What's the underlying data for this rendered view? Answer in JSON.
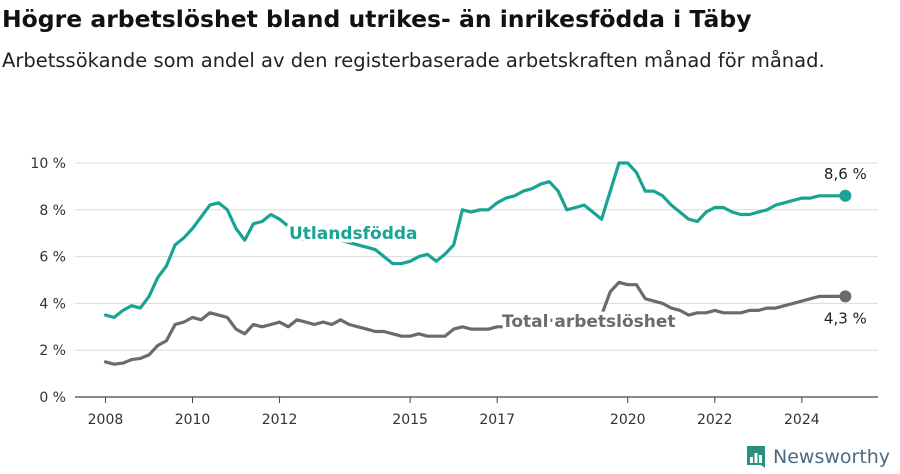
{
  "title": "Högre arbetslöshet bland utrikes- än inrikesfödda i Täby",
  "subtitle": "Arbetssökande som andel av den registerbaserade arbetskraften månad för månad.",
  "brand": {
    "name": "Newsworthy",
    "color": "#2a8f7e",
    "text_color": "#4a6a80"
  },
  "chart_data": {
    "type": "line",
    "ylim": [
      0,
      10
    ],
    "xlim": [
      2007.3,
      2025.75
    ],
    "y_ticks": [
      {
        "value": 0,
        "label": "0 %"
      },
      {
        "value": 2,
        "label": "2 %"
      },
      {
        "value": 4,
        "label": "4 %"
      },
      {
        "value": 6,
        "label": "6 %"
      },
      {
        "value": 8,
        "label": "8 %"
      },
      {
        "value": 10,
        "label": "10 %"
      }
    ],
    "x_ticks": [
      {
        "value": 2008,
        "label": "2008"
      },
      {
        "value": 2010,
        "label": "2010"
      },
      {
        "value": 2012,
        "label": "2012"
      },
      {
        "value": 2015,
        "label": "2015"
      },
      {
        "value": 2017,
        "label": "2017"
      },
      {
        "value": 2020,
        "label": "2020"
      },
      {
        "value": 2022,
        "label": "2022"
      },
      {
        "value": 2024,
        "label": "2024"
      }
    ],
    "grid": true,
    "series": [
      {
        "name": "Utlandsfödda",
        "color": "#1aa394",
        "end_label": "8,6 %",
        "x": [
          2008.0,
          2008.2,
          2008.4,
          2008.6,
          2008.8,
          2009.0,
          2009.2,
          2009.4,
          2009.6,
          2009.8,
          2010.0,
          2010.2,
          2010.4,
          2010.6,
          2010.8,
          2011.0,
          2011.2,
          2011.4,
          2011.6,
          2011.8,
          2012.0,
          2012.2,
          2012.4,
          2012.6,
          2012.8,
          2013.0,
          2013.2,
          2013.4,
          2013.6,
          2013.8,
          2014.0,
          2014.2,
          2014.4,
          2014.6,
          2014.8,
          2015.0,
          2015.2,
          2015.4,
          2015.6,
          2015.8,
          2016.0,
          2016.2,
          2016.4,
          2016.6,
          2016.8,
          2017.0,
          2017.2,
          2017.4,
          2017.6,
          2017.8,
          2018.0,
          2018.2,
          2018.4,
          2018.6,
          2018.8,
          2019.0,
          2019.2,
          2019.4,
          2019.6,
          2019.8,
          2020.0,
          2020.2,
          2020.4,
          2020.6,
          2020.8,
          2021.0,
          2021.2,
          2021.4,
          2021.6,
          2021.8,
          2022.0,
          2022.2,
          2022.4,
          2022.6,
          2022.8,
          2023.0,
          2023.2,
          2023.4,
          2023.6,
          2023.8,
          2024.0,
          2024.2,
          2024.4,
          2024.6,
          2024.8,
          2025.0
        ],
        "values": [
          3.5,
          3.4,
          3.7,
          3.9,
          3.8,
          4.3,
          5.1,
          5.6,
          6.5,
          6.8,
          7.2,
          7.7,
          8.2,
          8.3,
          8.0,
          7.2,
          6.7,
          7.4,
          7.5,
          7.8,
          7.6,
          7.3,
          6.8,
          6.7,
          6.8,
          6.9,
          6.8,
          6.7,
          6.6,
          6.5,
          6.4,
          6.3,
          6.0,
          5.7,
          5.7,
          5.8,
          6.0,
          6.1,
          5.8,
          6.1,
          6.5,
          8.0,
          7.9,
          8.0,
          8.0,
          8.3,
          8.5,
          8.6,
          8.8,
          8.9,
          9.1,
          9.2,
          8.8,
          8.0,
          8.1,
          8.2,
          7.9,
          7.6,
          8.8,
          10.0,
          10.0,
          9.6,
          8.8,
          8.8,
          8.6,
          8.2,
          7.9,
          7.6,
          7.5,
          7.9,
          8.1,
          8.1,
          7.9,
          7.8,
          7.8,
          7.9,
          8.0,
          8.2,
          8.3,
          8.4,
          8.5,
          8.5,
          8.6,
          8.6,
          8.6,
          8.6
        ]
      },
      {
        "name": "Total arbetslöshet",
        "color": "#6b6b6b",
        "end_label": "4,3 %",
        "x": [
          2008.0,
          2008.2,
          2008.4,
          2008.6,
          2008.8,
          2009.0,
          2009.2,
          2009.4,
          2009.6,
          2009.8,
          2010.0,
          2010.2,
          2010.4,
          2010.6,
          2010.8,
          2011.0,
          2011.2,
          2011.4,
          2011.6,
          2011.8,
          2012.0,
          2012.2,
          2012.4,
          2012.6,
          2012.8,
          2013.0,
          2013.2,
          2013.4,
          2013.6,
          2013.8,
          2014.0,
          2014.2,
          2014.4,
          2014.6,
          2014.8,
          2015.0,
          2015.2,
          2015.4,
          2015.6,
          2015.8,
          2016.0,
          2016.2,
          2016.4,
          2016.6,
          2016.8,
          2017.0,
          2017.2,
          2017.4,
          2017.6,
          2017.8,
          2018.0,
          2018.2,
          2018.4,
          2018.6,
          2018.8,
          2019.0,
          2019.2,
          2019.4,
          2019.6,
          2019.8,
          2020.0,
          2020.2,
          2020.4,
          2020.6,
          2020.8,
          2021.0,
          2021.2,
          2021.4,
          2021.6,
          2021.8,
          2022.0,
          2022.2,
          2022.4,
          2022.6,
          2022.8,
          2023.0,
          2023.2,
          2023.4,
          2023.6,
          2023.8,
          2024.0,
          2024.2,
          2024.4,
          2024.6,
          2024.8,
          2025.0
        ],
        "values": [
          1.5,
          1.4,
          1.45,
          1.6,
          1.65,
          1.8,
          2.2,
          2.4,
          3.1,
          3.2,
          3.4,
          3.3,
          3.6,
          3.5,
          3.4,
          2.9,
          2.7,
          3.1,
          3.0,
          3.1,
          3.2,
          3.0,
          3.3,
          3.2,
          3.1,
          3.2,
          3.1,
          3.3,
          3.1,
          3.0,
          2.9,
          2.8,
          2.8,
          2.7,
          2.6,
          2.6,
          2.7,
          2.6,
          2.6,
          2.6,
          2.9,
          3.0,
          2.9,
          2.9,
          2.9,
          3.0,
          3.0,
          3.1,
          3.1,
          3.2,
          3.3,
          3.3,
          3.2,
          3.0,
          3.0,
          3.1,
          3.3,
          3.5,
          4.5,
          4.9,
          4.8,
          4.8,
          4.2,
          4.1,
          4.0,
          3.8,
          3.7,
          3.5,
          3.6,
          3.6,
          3.7,
          3.6,
          3.6,
          3.6,
          3.7,
          3.7,
          3.8,
          3.8,
          3.9,
          4.0,
          4.1,
          4.2,
          4.3,
          4.3,
          4.3,
          4.3
        ]
      }
    ]
  }
}
